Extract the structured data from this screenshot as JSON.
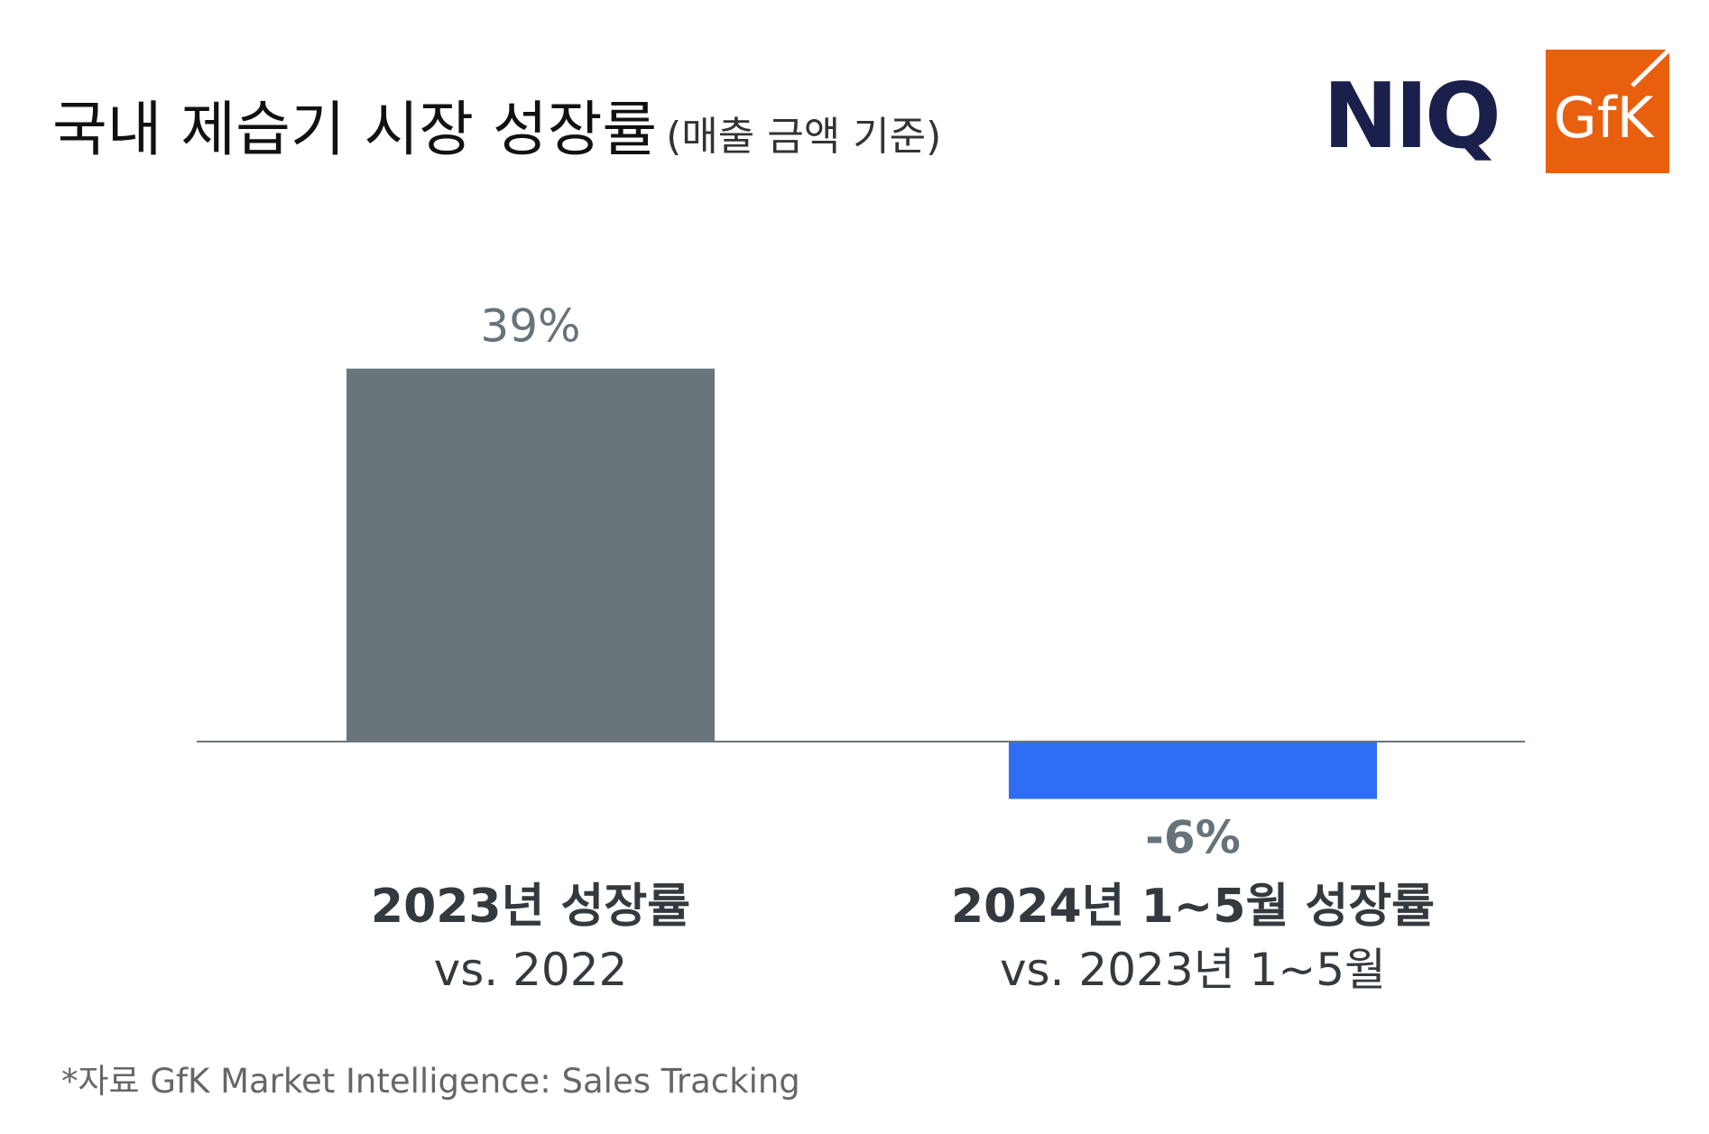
{
  "header": {
    "title": "국내 제습기 시장 성장률",
    "subtitle": "(매출 금액 기준)"
  },
  "logos": {
    "niq": "NIQ",
    "gfk": "GfK"
  },
  "colors": {
    "bar_2023": "#6a757b",
    "bar_2024": "#2d6ef5",
    "axis": "#6a757b",
    "gfk_orange": "#e8600e",
    "niq_navy": "#1b1f4b"
  },
  "chart_data": {
    "type": "bar",
    "categories": [
      "2023년 성장률",
      "2024년 1~5월 성장률"
    ],
    "category_subtitles": [
      "vs. 2022",
      "vs. 2023년 1~5월"
    ],
    "values": [
      39,
      -6
    ],
    "value_labels": [
      "39%",
      "-6%"
    ],
    "unit": "%",
    "ylim": [
      -10,
      45
    ],
    "grid": false,
    "legend": "none"
  },
  "footnote": "*자료 GfK Market Intelligence: Sales Tracking"
}
